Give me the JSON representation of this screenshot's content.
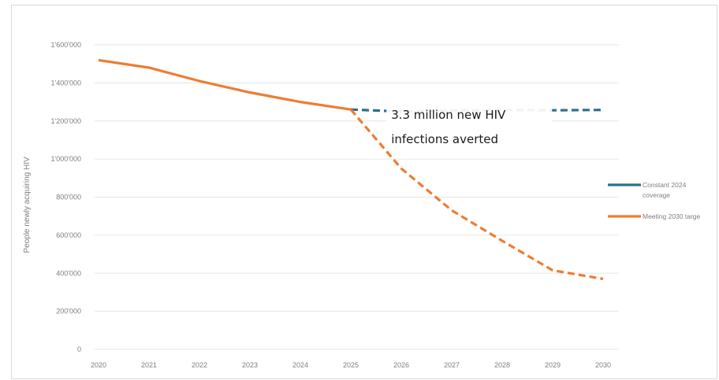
{
  "chart_data": {
    "type": "line",
    "title": "",
    "xlabel": "",
    "ylabel": "People newly acquiring HIV",
    "x": [
      "2020",
      "2021",
      "2022",
      "2023",
      "2024",
      "2025",
      "2026",
      "2027",
      "2028",
      "2029",
      "2030"
    ],
    "ylim": [
      0,
      1600000
    ],
    "yticks": [
      0,
      200000,
      400000,
      600000,
      800000,
      1000000,
      1200000,
      1400000,
      1600000
    ],
    "ytick_labels": [
      "0",
      "200'000",
      "400'000",
      "600'000",
      "800'000",
      "1'000'000",
      "1'200'000",
      "1'400'000",
      "1'600'000"
    ],
    "grid": "horizontal",
    "legend_position": "right",
    "series": [
      {
        "name": "Constant 2024 coverage",
        "name_lines": [
          "Constant 2024",
          "coverage"
        ],
        "color": "#2e6e8e",
        "style": "dashed",
        "x": [
          "2025",
          "2026",
          "2027",
          "2028",
          "2029",
          "2030"
        ],
        "values": [
          1260000,
          1250000,
          1255000,
          1258000,
          1256000,
          1258000
        ]
      },
      {
        "name": "Meeting 2030 targe",
        "name_lines": [
          "Meeting 2030 targe"
        ],
        "color": "#ed7d31",
        "style": "solid-then-dashed",
        "dash_from": "2025",
        "x": [
          "2020",
          "2021",
          "2022",
          "2023",
          "2024",
          "2025",
          "2026",
          "2027",
          "2028",
          "2029",
          "2030"
        ],
        "values": [
          1520000,
          1480000,
          1410000,
          1350000,
          1300000,
          1260000,
          950000,
          730000,
          570000,
          415000,
          370000
        ]
      }
    ],
    "annotations": [
      {
        "lines": [
          "3.3 million new HIV",
          "infections averted"
        ],
        "x": "2025.8",
        "y": 1120000
      }
    ]
  }
}
